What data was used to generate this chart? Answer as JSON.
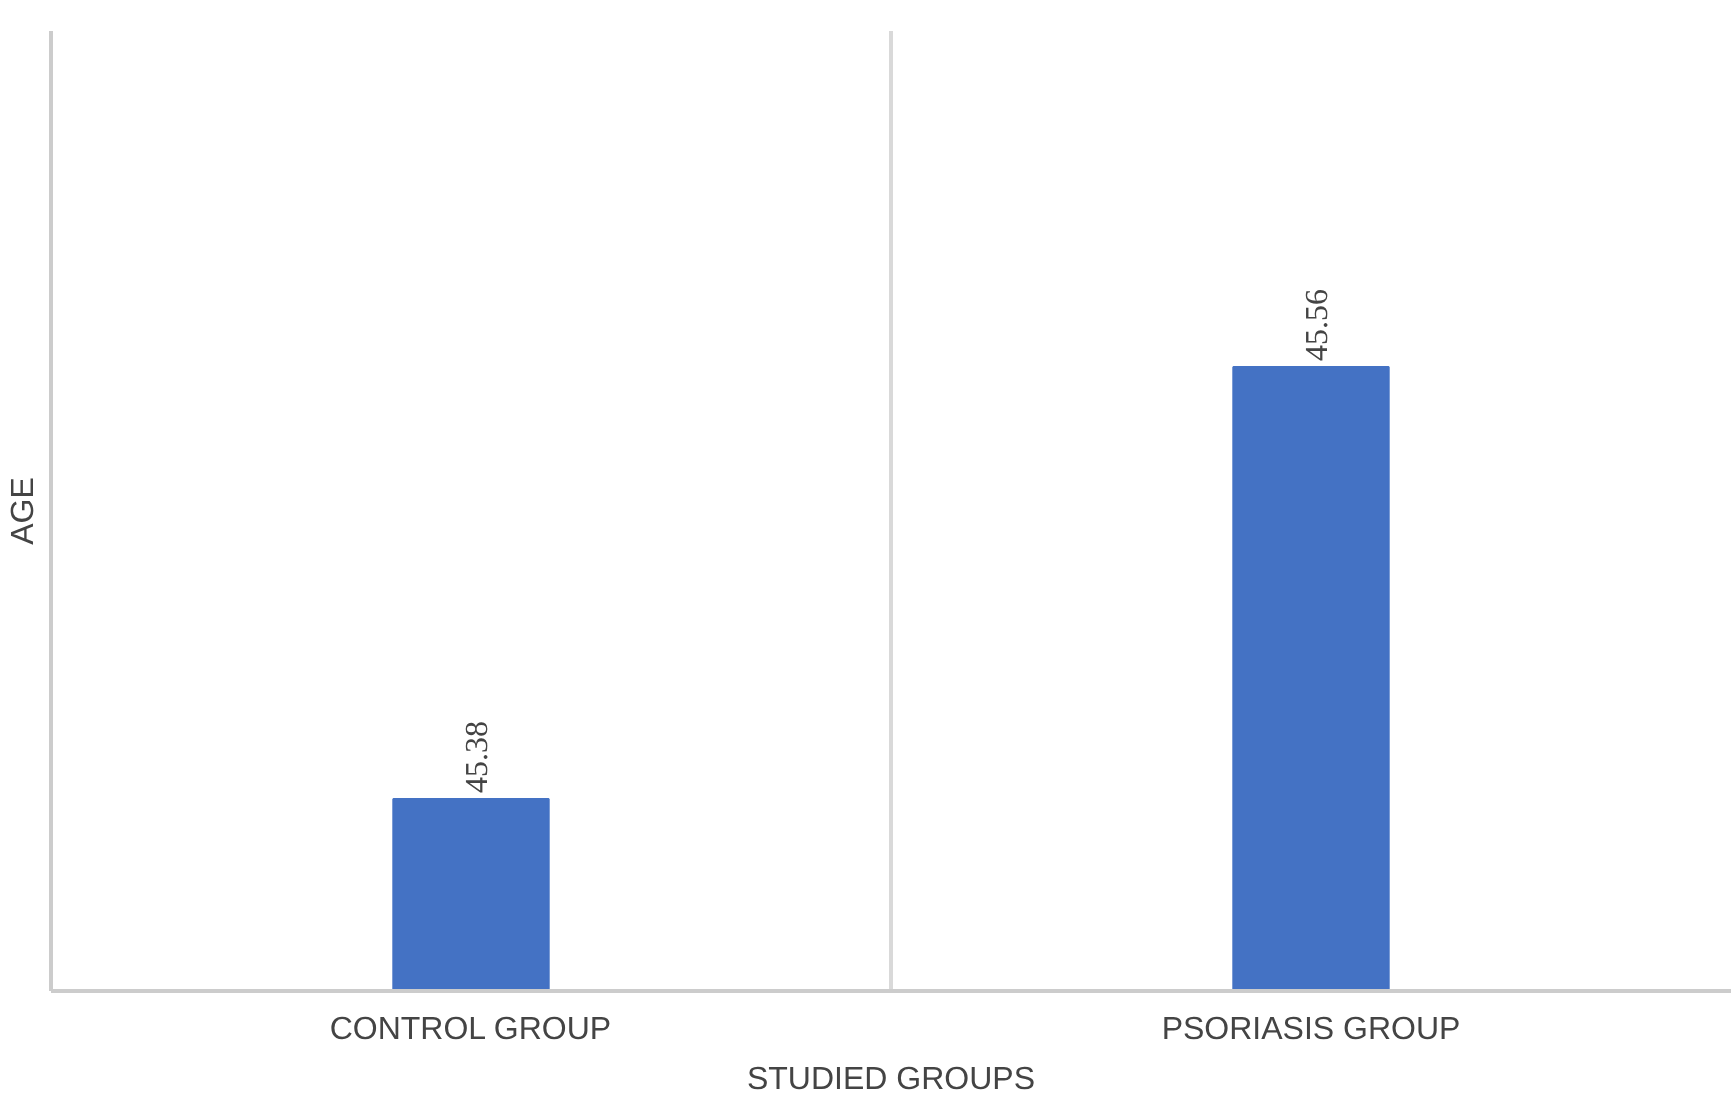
{
  "chart_data": {
    "type": "bar",
    "xlabel": "STUDIED GROUPS",
    "ylabel": "AGE",
    "categories": [
      "CONTROL GROUP",
      "PSORIASIS GROUP"
    ],
    "values": [
      45.38,
      45.56
    ],
    "color": "#4472c4",
    "ylim": [
      45.3,
      45.7
    ],
    "data_labels": true,
    "grid": "x",
    "tick_labels": "x"
  }
}
